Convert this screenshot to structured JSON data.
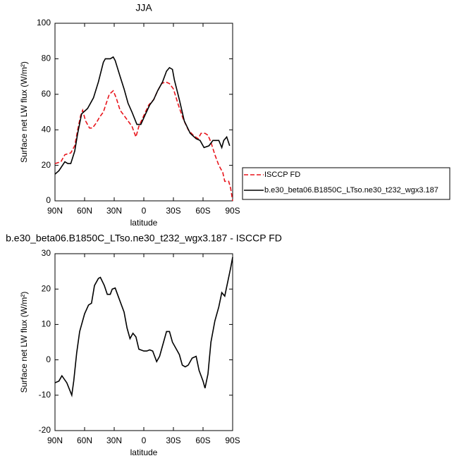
{
  "chart_data": [
    {
      "type": "line",
      "title": "JJA",
      "x_label": "latitude",
      "y_label": "Surface net LW flux (W/m²)",
      "xlim": [
        90,
        -90
      ],
      "xticks": [
        {
          "value": 90,
          "label": "90N"
        },
        {
          "value": 60,
          "label": "60N"
        },
        {
          "value": 30,
          "label": "30N"
        },
        0,
        {
          "value": -30,
          "label": "30S"
        },
        {
          "value": -60,
          "label": "60S"
        },
        {
          "value": -90,
          "label": "90S"
        }
      ],
      "ylim": [
        0,
        100
      ],
      "yticks": [
        0,
        20,
        40,
        60,
        80,
        100
      ],
      "legend": "right",
      "series": [
        {
          "name": "ISCCP FD",
          "color": "#e8141b",
          "dashed": true,
          "x": [
            90,
            84,
            80,
            74,
            70,
            67,
            64,
            62,
            59,
            55,
            52,
            48,
            45,
            41,
            38,
            35,
            31,
            28,
            24,
            20,
            16,
            12,
            8,
            5,
            0,
            -5,
            -10,
            -14,
            -18,
            -22,
            -26,
            -30,
            -35,
            -40,
            -45,
            -50,
            -55,
            -58,
            -62,
            -65,
            -68,
            -72,
            -76,
            -80,
            -82,
            -86,
            -88,
            -90
          ],
          "values": [
            21,
            22,
            26,
            27,
            31,
            40,
            48,
            51,
            45,
            41,
            41,
            44,
            47,
            50,
            55,
            60,
            62,
            58,
            51,
            48,
            45,
            42,
            36,
            42,
            48,
            54,
            57,
            62,
            66,
            67,
            66,
            63,
            54,
            46,
            40,
            37,
            35,
            38,
            38,
            37,
            33,
            26,
            20,
            16,
            11,
            11,
            7,
            0
          ]
        },
        {
          "name": "b.e30_beta06.B1850C_LTso.ne30_t232_wgx3.187",
          "color": "#000000",
          "dashed": false,
          "x": [
            90,
            86,
            80,
            77,
            74,
            70,
            67,
            63,
            57,
            51,
            46,
            41,
            39,
            34,
            31,
            29,
            24,
            20,
            16,
            12,
            7,
            3,
            -1,
            -6,
            -10,
            -14,
            -19,
            -23,
            -26,
            -29,
            -31,
            -36,
            -41,
            -47,
            -53,
            -57,
            -61,
            -66,
            -70,
            -76,
            -79,
            -81,
            -84,
            -87
          ],
          "values": [
            15,
            17,
            22,
            21,
            21,
            28,
            38,
            49,
            52,
            58,
            67,
            78,
            80,
            80,
            81,
            79,
            70,
            63,
            55,
            50,
            43,
            43,
            48,
            54,
            57,
            62,
            67,
            73,
            75,
            74,
            68,
            57,
            45,
            38,
            35,
            34,
            30,
            31,
            34,
            34,
            30,
            34,
            36,
            31
          ]
        }
      ]
    },
    {
      "type": "line",
      "title": "b.e30_beta06.B1850C_LTso.ne30_t232_wgx3.187 - ISCCP FD",
      "x_label": "latitude",
      "y_label": "Surface net LW flux (W/m²)",
      "xlim": [
        90,
        -90
      ],
      "xticks": [
        {
          "value": 90,
          "label": "90N"
        },
        {
          "value": 60,
          "label": "60N"
        },
        {
          "value": 30,
          "label": "30N"
        },
        0,
        {
          "value": -30,
          "label": "30S"
        },
        {
          "value": -60,
          "label": "60S"
        },
        {
          "value": -90,
          "label": "90S"
        }
      ],
      "ylim": [
        -20,
        30
      ],
      "yticks": [
        -20,
        -10,
        0,
        10,
        20,
        30
      ],
      "series": [
        {
          "color": "#000000",
          "dashed": false,
          "x": [
            90,
            86,
            83,
            78,
            73,
            71,
            68,
            65,
            60,
            56,
            53,
            50,
            46,
            44,
            40,
            37,
            34,
            32,
            29,
            26,
            20,
            17,
            14,
            11,
            8,
            5,
            0,
            -3,
            -6,
            -9,
            -13,
            -16,
            -20,
            -23,
            -26,
            -29,
            -33,
            -36,
            -39,
            -42,
            -45,
            -49,
            -53,
            -56,
            -60,
            -62,
            -65,
            -68,
            -72,
            -76,
            -79,
            -82,
            -85,
            -88,
            -90
          ],
          "values": [
            -6.5,
            -6,
            -4.5,
            -6.5,
            -10,
            -6,
            2,
            8,
            13,
            15.5,
            16,
            21,
            23,
            23.3,
            21,
            18.5,
            18.5,
            20,
            20.3,
            18,
            13.5,
            9,
            6,
            7.5,
            6.5,
            3,
            2.5,
            2.5,
            2.8,
            2.5,
            -0.5,
            1,
            5,
            8,
            8,
            5,
            3,
            1.5,
            -1.5,
            -2,
            -1.5,
            0.5,
            1,
            -3,
            -6,
            -8,
            -4,
            5,
            11,
            15,
            19,
            18,
            22,
            26,
            29
          ]
        }
      ]
    }
  ]
}
